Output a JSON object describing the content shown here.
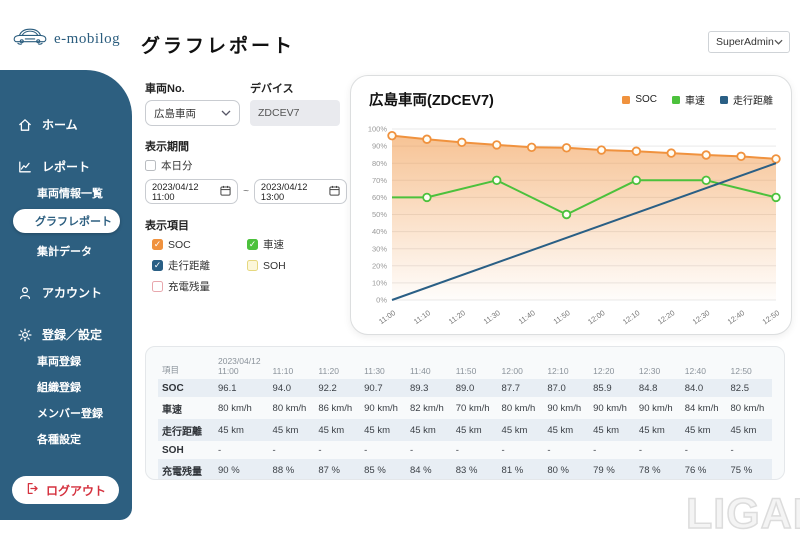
{
  "header": {
    "brand": "e-mobilog",
    "page_title": "グラフレポート",
    "user_role": "SuperAdmin"
  },
  "sidebar": {
    "items": [
      {
        "id": "home",
        "label": "ホーム",
        "icon": "home"
      },
      {
        "id": "report",
        "label": "レポート",
        "icon": "chart"
      },
      {
        "id": "vehicle-info-list",
        "label": "車両情報一覧"
      },
      {
        "id": "graph-report",
        "label": "グラフレポート",
        "active": true
      },
      {
        "id": "aggregate-data",
        "label": "集計データ"
      },
      {
        "id": "account",
        "label": "アカウント",
        "icon": "person"
      },
      {
        "id": "register-settings",
        "label": "登録／設定",
        "icon": "gear"
      },
      {
        "id": "vehicle-register",
        "label": "車両登録"
      },
      {
        "id": "org-register",
        "label": "組織登録"
      },
      {
        "id": "member-register",
        "label": "メンバー登録"
      },
      {
        "id": "misc-settings",
        "label": "各種設定"
      }
    ],
    "logout_label": "ログアウト"
  },
  "filters": {
    "vehicle_no_label": "車両No.",
    "vehicle_no_value": "広島車両",
    "device_label": "デバイス",
    "device_value": "ZDCEV7",
    "period_label": "表示期間",
    "today_checkbox_label": "本日分",
    "today_checked": false,
    "period_from": "2023/04/12 11:00",
    "period_separator": "~",
    "period_to": "2023/04/12 13:00",
    "items_label": "表示項目",
    "item_checkboxes": [
      {
        "label": "SOC",
        "checked": true,
        "color": "#f0923e"
      },
      {
        "label": "車速",
        "checked": true,
        "color": "#4cc13c"
      },
      {
        "label": "走行距離",
        "checked": true,
        "color": "#2a5f85"
      },
      {
        "label": "SOH",
        "checked": false,
        "border_color": "#e6d87f",
        "bg": "#fcf7da"
      },
      {
        "label": "充電残量",
        "checked": false,
        "border_color": "#e8a7ad",
        "bg": "#ffffff"
      }
    ]
  },
  "chart_data": {
    "type": "line",
    "title": "広島車両(ZDCEV7)",
    "ylim": [
      0,
      100
    ],
    "y_tick_step": 10,
    "y_tick_suffix": "%",
    "grid": "horizontal",
    "legend_position": "top-right",
    "x_labels": [
      "11:00",
      "11:10",
      "11:20",
      "11:30",
      "11:40",
      "11:50",
      "12:00",
      "12:10",
      "12:20",
      "12:30",
      "12:40",
      "12:50"
    ],
    "series": [
      {
        "name": "SOC",
        "color": "#f0923e",
        "area": true,
        "values": [
          96.1,
          94.0,
          92.2,
          90.7,
          89.3,
          89.0,
          87.7,
          87.0,
          85.9,
          84.8,
          84.0,
          82.5
        ]
      },
      {
        "name": "車速",
        "color": "#4cc13c",
        "points": [
          [
            0,
            60,
            0
          ],
          [
            1,
            60,
            1
          ],
          [
            3,
            70,
            1
          ],
          [
            5,
            50,
            1
          ],
          [
            7,
            70,
            1
          ],
          [
            9,
            70,
            1
          ],
          [
            11,
            60,
            1
          ]
        ]
      },
      {
        "name": "走行距離",
        "color": "#2a5f85",
        "points": [
          [
            0,
            0,
            0
          ],
          [
            11,
            80,
            0
          ]
        ]
      }
    ]
  },
  "table": {
    "item_col_header": "項目",
    "first_col_date": "2023/04/12",
    "time_columns": [
      "11:00",
      "11:10",
      "11:20",
      "11:30",
      "11:40",
      "11:50",
      "12:00",
      "12:10",
      "12:20",
      "12:30",
      "12:40",
      "12:50"
    ],
    "rows": [
      {
        "label": "SOC",
        "values": [
          "96.1",
          "94.0",
          "92.2",
          "90.7",
          "89.3",
          "89.0",
          "87.7",
          "87.0",
          "85.9",
          "84.8",
          "84.0",
          "82.5"
        ]
      },
      {
        "label": "車速",
        "values": [
          "80 km/h",
          "80 km/h",
          "86 km/h",
          "90 km/h",
          "82 km/h",
          "70 km/h",
          "80 km/h",
          "90 km/h",
          "90 km/h",
          "90 km/h",
          "84 km/h",
          "80 km/h"
        ]
      },
      {
        "label": "走行距離",
        "values": [
          "45 km",
          "45 km",
          "45 km",
          "45 km",
          "45 km",
          "45 km",
          "45 km",
          "45 km",
          "45 km",
          "45 km",
          "45 km",
          "45 km"
        ]
      },
      {
        "label": "SOH",
        "values": [
          "-",
          "-",
          "-",
          "-",
          "-",
          "-",
          "-",
          "-",
          "-",
          "-",
          "-",
          "-"
        ]
      },
      {
        "label": "充電残量",
        "values": [
          "90 %",
          "88 %",
          "87 %",
          "85 %",
          "84 %",
          "83 %",
          "81 %",
          "80 %",
          "79 %",
          "78 %",
          "76 %",
          "75 %"
        ]
      }
    ]
  },
  "watermark": "LIGARE"
}
